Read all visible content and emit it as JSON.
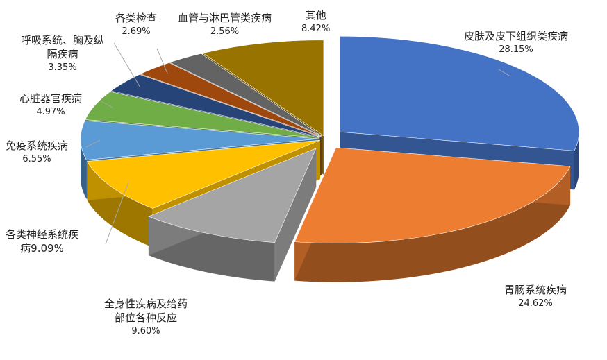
{
  "chart_data": {
    "type": "pie",
    "style": "3d-exploded",
    "title": "",
    "start_angle_deg": 90,
    "direction": "clockwise",
    "series": [
      {
        "name": "",
        "slices": [
          {
            "label": "皮肤及皮下组织类疾病",
            "value": 28.15,
            "display": "28.15%",
            "color": "#4472c4"
          },
          {
            "label": "胃肠系统疾病",
            "value": 24.62,
            "display": "24.62%",
            "color": "#ed7d31"
          },
          {
            "label": "全身性疾病及给药部位各种反应",
            "value": 9.6,
            "display": "9.60%",
            "color": "#a5a5a5"
          },
          {
            "label": "各类神经系统疾病",
            "value": 9.09,
            "display": "病9.09%",
            "color": "#ffc000"
          },
          {
            "label": "免疫系统疾病",
            "value": 6.55,
            "display": "6.55%",
            "color": "#5b9bd5"
          },
          {
            "label": "心脏器官疾病",
            "value": 4.97,
            "display": "4.97%",
            "color": "#70ad47"
          },
          {
            "label": "呼吸系统、胸及纵隔疾病",
            "value": 3.35,
            "display": "3.35%",
            "color": "#264478"
          },
          {
            "label": "各类检查",
            "value": 2.69,
            "display": "2.69%",
            "color": "#9e480e"
          },
          {
            "label": "血管与淋巴管类疾病",
            "value": 2.56,
            "display": "2.56%",
            "color": "#636363"
          },
          {
            "label": "其他",
            "value": 8.42,
            "display": "8.42%",
            "color": "#997300"
          }
        ]
      }
    ]
  },
  "labels": {
    "skin_line1": "皮肤及皮下组织类疾病",
    "skin_pct": "28.15%",
    "gi_line1": "胃肠系统疾病",
    "gi_pct": "24.62%",
    "general_line1": "全身性疾病及给药",
    "general_line2": "部位各种反应",
    "general_pct": "9.60%",
    "neuro_line1": "各类神经系统疾",
    "neuro_line2": "病9.09%",
    "immune_line1": "免疫系统疾病",
    "immune_pct": "6.55%",
    "cardiac_line1": "心脏器官疾病",
    "cardiac_pct": "4.97%",
    "resp_line1": "呼吸系统、胸及纵",
    "resp_line2": "隔疾病",
    "resp_pct": "3.35%",
    "exam_line1": "各类检查",
    "exam_pct": "2.69%",
    "vascular_line1": "血管与淋巴管类疾病",
    "vascular_pct": "2.56%",
    "other_line1": "其他",
    "other_pct": "8.42%"
  }
}
